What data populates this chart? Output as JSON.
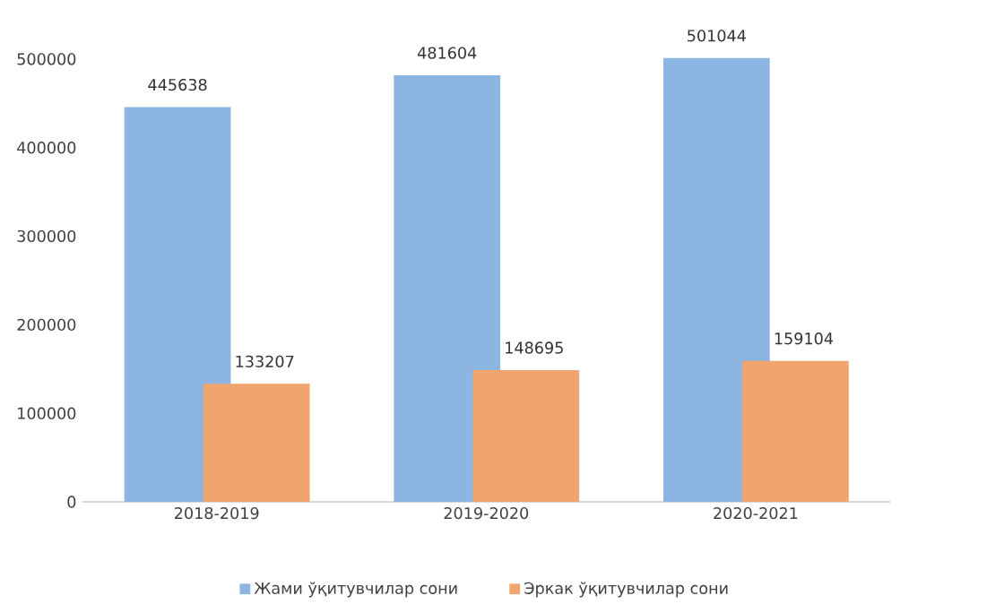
{
  "chart_data": {
    "type": "bar",
    "categories": [
      "2018-2019",
      "2019-2020",
      "2020-2021"
    ],
    "series": [
      {
        "name": "Жами ўқитувчилар сони",
        "color": "#8cb5e1",
        "values": [
          445638,
          481604,
          501044
        ]
      },
      {
        "name": "Эркак ўқитувчилар сони",
        "color": "#f0a56f",
        "values": [
          133207,
          148695,
          159104
        ]
      }
    ],
    "ylim": [
      0,
      510000
    ],
    "yticks": [
      0,
      100000,
      200000,
      300000,
      400000,
      500000
    ],
    "data_labels": true,
    "legend": "bottom",
    "grid": false
  }
}
